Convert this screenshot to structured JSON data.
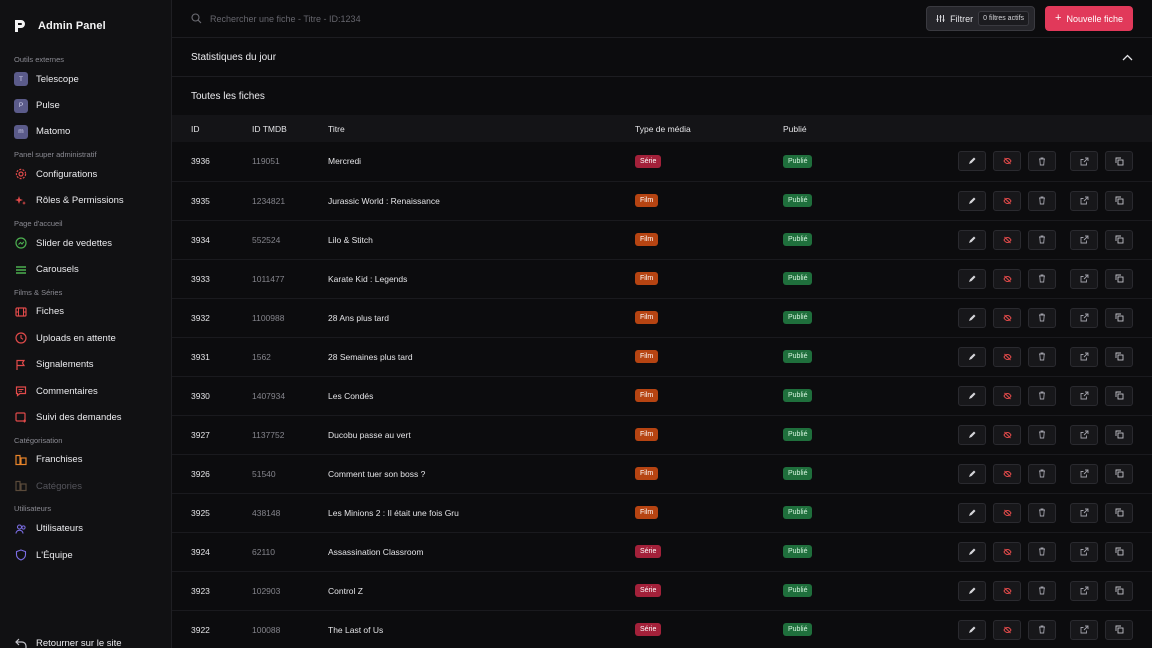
{
  "sidebar": {
    "brand": "Admin Panel",
    "sections": [
      {
        "label": "Outils externes",
        "items": [
          {
            "label": "Telescope",
            "icon": "telescope-badge-icon",
            "letter": "T"
          },
          {
            "label": "Pulse",
            "icon": "pulse-badge-icon",
            "letter": "P"
          },
          {
            "label": "Matomo",
            "icon": "matomo-badge-icon",
            "letter": "m"
          }
        ]
      },
      {
        "label": "Panel super administratif",
        "items": [
          {
            "label": "Configurations",
            "icon": "gear-icon"
          },
          {
            "label": "Rôles & Permissions",
            "icon": "sparkle-icon"
          }
        ]
      },
      {
        "label": "Page d'accueil",
        "items": [
          {
            "label": "Slider de vedettes",
            "icon": "slider-icon"
          },
          {
            "label": "Carousels",
            "icon": "stack-icon"
          }
        ]
      },
      {
        "label": "Films & Séries",
        "items": [
          {
            "label": "Fiches",
            "icon": "film-icon"
          },
          {
            "label": "Uploads en attente",
            "icon": "clock-icon"
          },
          {
            "label": "Signalements",
            "icon": "flag-icon"
          },
          {
            "label": "Commentaires",
            "icon": "comment-icon"
          },
          {
            "label": "Suivi des demandes",
            "icon": "request-icon"
          }
        ]
      },
      {
        "label": "Catégorisation",
        "items": [
          {
            "label": "Franchises",
            "icon": "franchise-icon"
          },
          {
            "label": "Catégories",
            "icon": "category-icon",
            "disabled": true
          }
        ]
      },
      {
        "label": "Utilisateurs",
        "items": [
          {
            "label": "Utilisateurs",
            "icon": "users-icon"
          },
          {
            "label": "L'Équipe",
            "icon": "shield-icon"
          }
        ]
      }
    ],
    "back_link": "Retourner sur le site"
  },
  "topbar": {
    "search_placeholder": "Rechercher une fiche - Titre - ID:1234",
    "filter_label": "Filtrer",
    "filter_count": "0 filtres actifs",
    "new_label": "Nouvelle fiche"
  },
  "stats": {
    "title": "Statistiques du jour"
  },
  "list": {
    "title": "Toutes les fiches",
    "columns": [
      "ID",
      "ID TMDB",
      "Titre",
      "Type de média",
      "Publié"
    ],
    "rows": [
      {
        "id": "3936",
        "tmdb": "119051",
        "title": "Mercredi",
        "type": "Série",
        "status": "Publié"
      },
      {
        "id": "3935",
        "tmdb": "1234821",
        "title": "Jurassic World : Renaissance",
        "type": "Film",
        "status": "Publié"
      },
      {
        "id": "3934",
        "tmdb": "552524",
        "title": "Lilo & Stitch",
        "type": "Film",
        "status": "Publié"
      },
      {
        "id": "3933",
        "tmdb": "1011477",
        "title": "Karate Kid : Legends",
        "type": "Film",
        "status": "Publié"
      },
      {
        "id": "3932",
        "tmdb": "1100988",
        "title": "28 Ans plus tard",
        "type": "Film",
        "status": "Publié"
      },
      {
        "id": "3931",
        "tmdb": "1562",
        "title": "28 Semaines plus tard",
        "type": "Film",
        "status": "Publié"
      },
      {
        "id": "3930",
        "tmdb": "1407934",
        "title": "Les Condés",
        "type": "Film",
        "status": "Publié"
      },
      {
        "id": "3927",
        "tmdb": "1137752",
        "title": "Ducobu passe au vert",
        "type": "Film",
        "status": "Publié"
      },
      {
        "id": "3926",
        "tmdb": "51540",
        "title": "Comment tuer son boss ?",
        "type": "Film",
        "status": "Publié"
      },
      {
        "id": "3925",
        "tmdb": "438148",
        "title": "Les Minions 2 : Il était une fois Gru",
        "type": "Film",
        "status": "Publié"
      },
      {
        "id": "3924",
        "tmdb": "62110",
        "title": "Assassination Classroom",
        "type": "Série",
        "status": "Publié"
      },
      {
        "id": "3923",
        "tmdb": "102903",
        "title": "Control Z",
        "type": "Série",
        "status": "Publié"
      },
      {
        "id": "3922",
        "tmdb": "100088",
        "title": "The Last of Us",
        "type": "Série",
        "status": "Publié"
      }
    ],
    "row_actions": [
      "edit-icon",
      "unpublish-icon",
      "trash-icon",
      "external-link-icon",
      "copy-icon"
    ]
  },
  "colors": {
    "accent": "#e1395a",
    "serie": "#a3213a",
    "film": "#b64412",
    "published": "#1f6f3c"
  }
}
